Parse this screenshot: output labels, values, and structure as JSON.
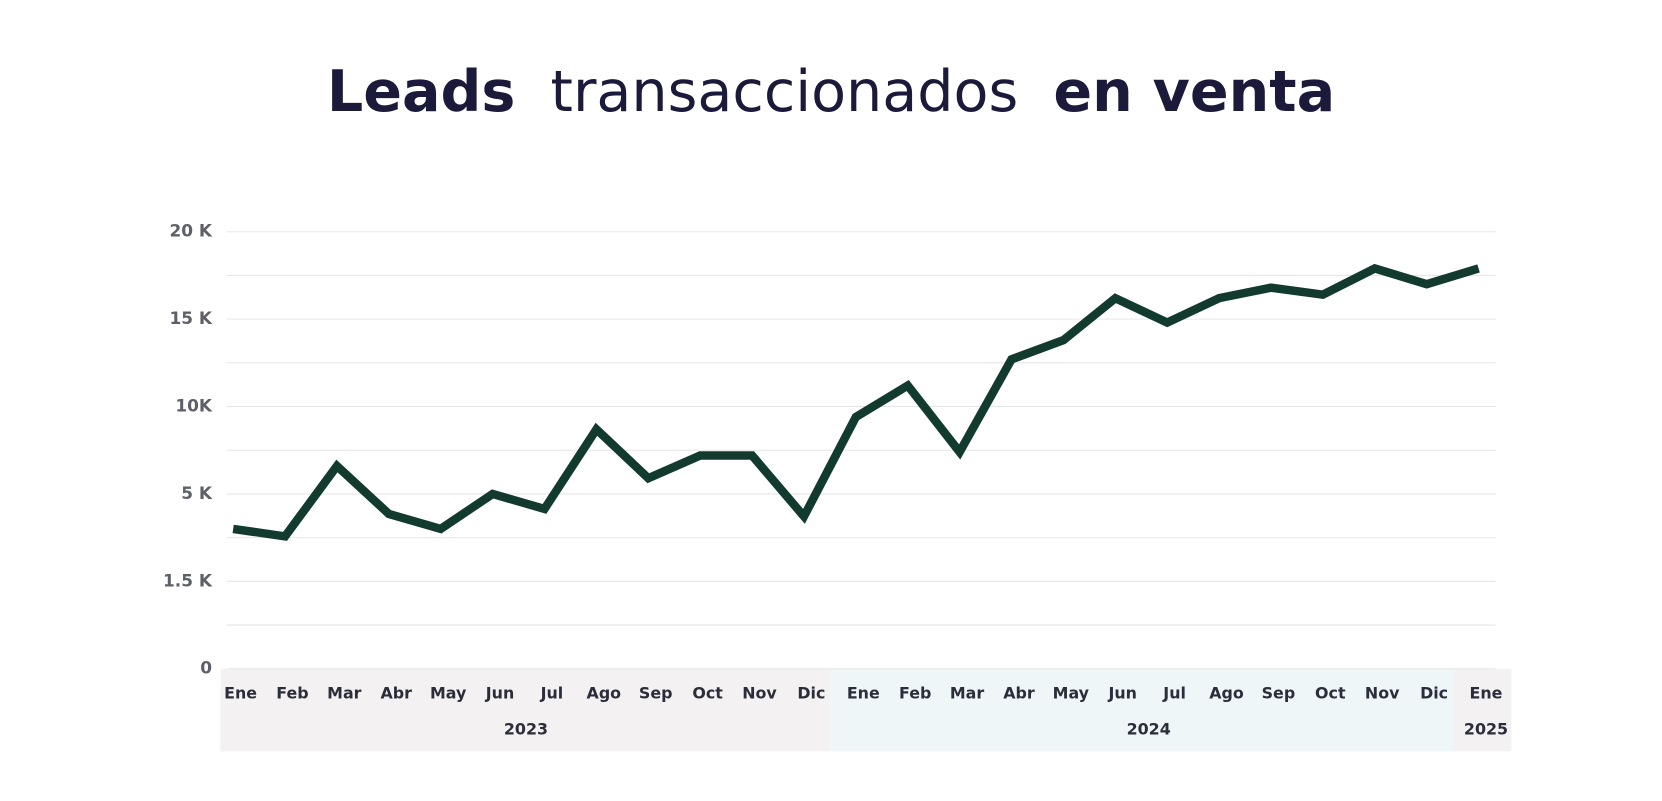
{
  "chart_data": {
    "type": "line",
    "title_parts": [
      {
        "text": "Leads",
        "bold": true
      },
      {
        "text": "transaccionados",
        "bold": false
      },
      {
        "text": "en venta",
        "bold": true
      }
    ],
    "groups": [
      {
        "name": "2023",
        "color": "#f3f1f1",
        "categories": [
          "Ene",
          "Feb",
          "Mar",
          "Abr",
          "May",
          "Jun",
          "Jul",
          "Ago",
          "Sep",
          "Oct",
          "Nov",
          "Dic"
        ]
      },
      {
        "name": "2024",
        "color": "#eef6f8",
        "categories": [
          "Ene",
          "Feb",
          "Mar",
          "Abr",
          "May",
          "Jun",
          "Jul",
          "Ago",
          "Sep",
          "Oct",
          "Nov",
          "Dic"
        ]
      },
      {
        "name": "2025",
        "color": "#f3f1f1",
        "categories": [
          "Ene"
        ]
      }
    ],
    "series": [
      {
        "name": "Leads",
        "color": "#123a2e",
        "values": [
          3600,
          3300,
          6600,
          4200,
          3600,
          5000,
          4400,
          8700,
          5900,
          7200,
          7200,
          4100,
          9400,
          11200,
          7400,
          12700,
          13800,
          16200,
          14800,
          16200,
          16800,
          16400,
          17900,
          17000,
          17900
        ]
      }
    ],
    "ylim": [
      0,
      20000
    ],
    "yticks": [
      {
        "value": 0,
        "label": "0"
      },
      {
        "value": 1500,
        "label": "1.5 K"
      },
      {
        "value": 5000,
        "label": "5 K"
      },
      {
        "value": 10000,
        "label": "10K"
      },
      {
        "value": 15000,
        "label": "15 K"
      },
      {
        "value": 20000,
        "label": "20 K"
      }
    ],
    "grid": true,
    "minor_grid": true
  }
}
